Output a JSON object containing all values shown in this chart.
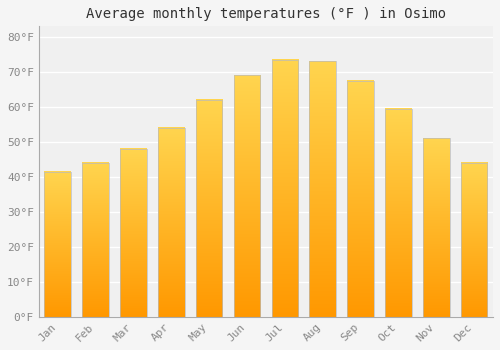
{
  "months": [
    "Jan",
    "Feb",
    "Mar",
    "Apr",
    "May",
    "Jun",
    "Jul",
    "Aug",
    "Sep",
    "Oct",
    "Nov",
    "Dec"
  ],
  "values": [
    41.5,
    44.0,
    48.0,
    54.0,
    62.0,
    69.0,
    73.5,
    73.0,
    67.5,
    59.5,
    51.0,
    44.0
  ],
  "bar_color_top": "#FFD54F",
  "bar_color_bottom": "#FF9800",
  "bar_edge_color": "#bbbbbb",
  "title": "Average monthly temperatures (°F ) in Osimo",
  "title_fontsize": 10,
  "title_fontfamily": "monospace",
  "ylabel_fontsize": 8,
  "xlabel_fontsize": 8,
  "ytick_labels": [
    "0°F",
    "10°F",
    "20°F",
    "30°F",
    "40°F",
    "50°F",
    "60°F",
    "70°F",
    "80°F"
  ],
  "ytick_values": [
    0,
    10,
    20,
    30,
    40,
    50,
    60,
    70,
    80
  ],
  "ylim": [
    0,
    83
  ],
  "background_color": "#f5f5f5",
  "plot_background_color": "#f0f0f0",
  "grid_color": "#ffffff",
  "grid_linewidth": 1.0,
  "tick_label_color": "#888888",
  "title_color": "#333333",
  "bar_width": 0.7
}
